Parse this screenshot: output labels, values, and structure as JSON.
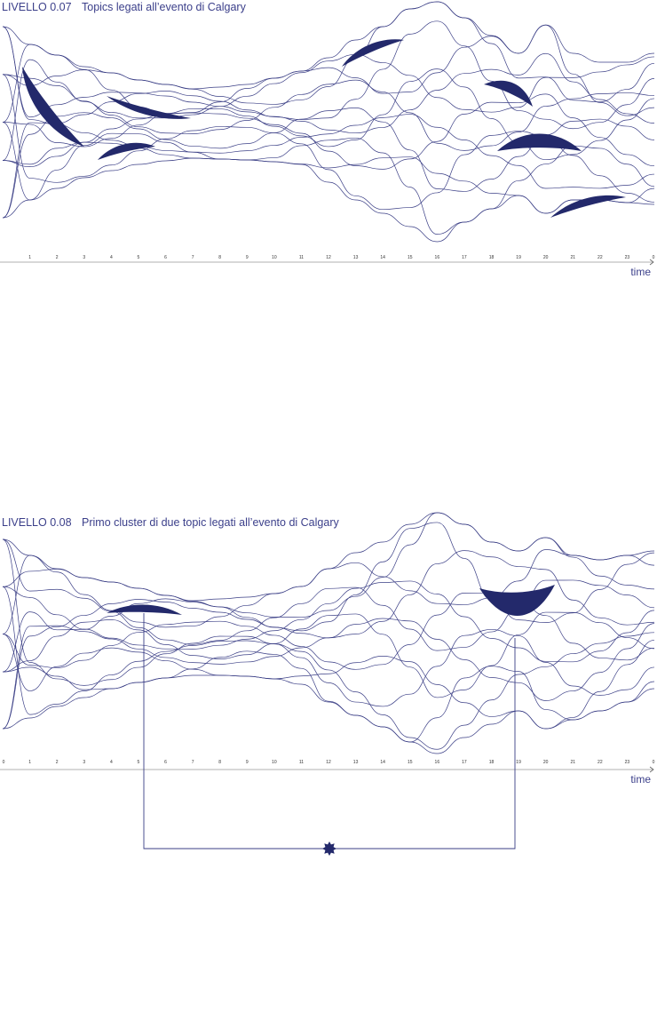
{
  "panels": [
    {
      "level": "LIVELLO 0.07",
      "title": "Topics legati all’evento di Calgary",
      "ticks": [
        null,
        "1",
        "2",
        "3",
        "4",
        "5",
        "6",
        "7",
        "8",
        "9",
        "10",
        "11",
        "12",
        "13",
        "14",
        "15",
        "16",
        "17",
        "18",
        "19",
        "20",
        "21",
        "22",
        "23",
        "0"
      ],
      "axis_label": "time"
    },
    {
      "level": "LIVELLO 0.08",
      "title": "Primo cluster di due topic legati all’evento di Calgary",
      "ticks": [
        "0",
        "1",
        "2",
        "3",
        "4",
        "5",
        "6",
        "7",
        "8",
        "9",
        "10",
        "11",
        "12",
        "13",
        "14",
        "15",
        "16",
        "17",
        "18",
        "19",
        "20",
        "21",
        "22",
        "23",
        "0"
      ],
      "axis_label": "time"
    }
  ]
}
